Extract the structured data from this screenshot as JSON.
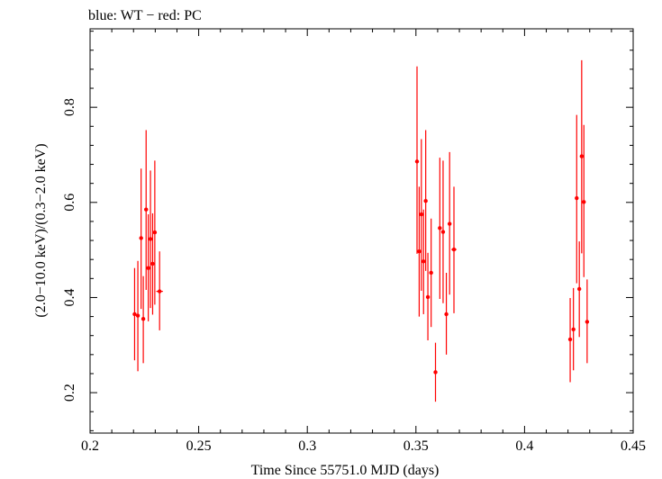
{
  "chart_data": {
    "type": "scatter",
    "title": "blue: WT − red: PC",
    "xlabel": "Time Since 55751.0 MJD (days)",
    "ylabel": "(2.0−10.0 keV)/(0.3−2.0 keV)",
    "xlim": [
      0.2,
      0.45
    ],
    "ylim": [
      0.115,
      0.965
    ],
    "xticks": [
      {
        "value": 0.2,
        "label": "0.2"
      },
      {
        "value": 0.25,
        "label": "0.25"
      },
      {
        "value": 0.3,
        "label": "0.3"
      },
      {
        "value": 0.35,
        "label": "0.35"
      },
      {
        "value": 0.4,
        "label": "0.4"
      },
      {
        "value": 0.45,
        "label": "0.45"
      }
    ],
    "yticks": [
      {
        "value": 0.2,
        "label": "0.2"
      },
      {
        "value": 0.4,
        "label": "0.4"
      },
      {
        "value": 0.6,
        "label": "0.6"
      },
      {
        "value": 0.8,
        "label": "0.8"
      }
    ],
    "grid": false,
    "series": [
      {
        "color": "#ff0000",
        "points": [
          {
            "x": 0.2205,
            "y": 0.365,
            "ylo": 0.268,
            "yhi": 0.462,
            "xerr": 0.0008
          },
          {
            "x": 0.222,
            "y": 0.362,
            "ylo": 0.245,
            "yhi": 0.477,
            "xerr": 0.0008
          },
          {
            "x": 0.2235,
            "y": 0.525,
            "ylo": 0.376,
            "yhi": 0.671,
            "xerr": 0.0008
          },
          {
            "x": 0.2245,
            "y": 0.355,
            "ylo": 0.262,
            "yhi": 0.445,
            "xerr": 0.0008
          },
          {
            "x": 0.2258,
            "y": 0.585,
            "ylo": 0.416,
            "yhi": 0.752,
            "xerr": 0.0008
          },
          {
            "x": 0.2268,
            "y": 0.462,
            "ylo": 0.35,
            "yhi": 0.575,
            "xerr": 0.0008
          },
          {
            "x": 0.2278,
            "y": 0.523,
            "ylo": 0.378,
            "yhi": 0.667,
            "xerr": 0.0008
          },
          {
            "x": 0.2288,
            "y": 0.471,
            "ylo": 0.364,
            "yhi": 0.577,
            "xerr": 0.0008
          },
          {
            "x": 0.2298,
            "y": 0.537,
            "ylo": 0.385,
            "yhi": 0.688,
            "xerr": 0.0008
          },
          {
            "x": 0.232,
            "y": 0.413,
            "ylo": 0.331,
            "yhi": 0.497,
            "xerr": 0.0015
          },
          {
            "x": 0.3505,
            "y": 0.686,
            "ylo": 0.492,
            "yhi": 0.886,
            "xerr": 0.0006
          },
          {
            "x": 0.3515,
            "y": 0.497,
            "ylo": 0.36,
            "yhi": 0.633,
            "xerr": 0.0006
          },
          {
            "x": 0.3525,
            "y": 0.575,
            "ylo": 0.414,
            "yhi": 0.733,
            "xerr": 0.0006
          },
          {
            "x": 0.3535,
            "y": 0.476,
            "ylo": 0.365,
            "yhi": 0.585,
            "xerr": 0.0006
          },
          {
            "x": 0.3545,
            "y": 0.603,
            "ylo": 0.456,
            "yhi": 0.752,
            "xerr": 0.0006
          },
          {
            "x": 0.3555,
            "y": 0.401,
            "ylo": 0.31,
            "yhi": 0.494,
            "xerr": 0.0006
          },
          {
            "x": 0.357,
            "y": 0.452,
            "ylo": 0.338,
            "yhi": 0.566,
            "xerr": 0.0006
          },
          {
            "x": 0.359,
            "y": 0.243,
            "ylo": 0.181,
            "yhi": 0.305,
            "xerr": 0.0008
          },
          {
            "x": 0.361,
            "y": 0.546,
            "ylo": 0.397,
            "yhi": 0.694,
            "xerr": 0.0006
          },
          {
            "x": 0.3625,
            "y": 0.538,
            "ylo": 0.388,
            "yhi": 0.688,
            "xerr": 0.0006
          },
          {
            "x": 0.364,
            "y": 0.365,
            "ylo": 0.28,
            "yhi": 0.452,
            "xerr": 0.0006
          },
          {
            "x": 0.3655,
            "y": 0.555,
            "ylo": 0.406,
            "yhi": 0.706,
            "xerr": 0.0006
          },
          {
            "x": 0.3675,
            "y": 0.501,
            "ylo": 0.367,
            "yhi": 0.633,
            "xerr": 0.0012
          },
          {
            "x": 0.421,
            "y": 0.312,
            "ylo": 0.222,
            "yhi": 0.399,
            "xerr": 0.0006
          },
          {
            "x": 0.4225,
            "y": 0.333,
            "ylo": 0.247,
            "yhi": 0.42,
            "xerr": 0.0006
          },
          {
            "x": 0.424,
            "y": 0.609,
            "ylo": 0.43,
            "yhi": 0.784,
            "xerr": 0.0006
          },
          {
            "x": 0.4252,
            "y": 0.418,
            "ylo": 0.317,
            "yhi": 0.518,
            "xerr": 0.0006
          },
          {
            "x": 0.4263,
            "y": 0.697,
            "ylo": 0.493,
            "yhi": 0.899,
            "xerr": 0.0006
          },
          {
            "x": 0.4273,
            "y": 0.601,
            "ylo": 0.443,
            "yhi": 0.763,
            "xerr": 0.0006
          },
          {
            "x": 0.4288,
            "y": 0.349,
            "ylo": 0.262,
            "yhi": 0.438,
            "xerr": 0.0008
          }
        ]
      }
    ]
  }
}
